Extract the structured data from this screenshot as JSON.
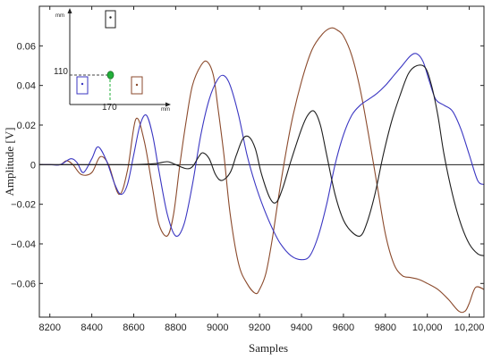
{
  "chart_data": {
    "type": "line",
    "xlabel": "Samples",
    "ylabel": "Amplitude [V]",
    "xlim": [
      8150,
      10270
    ],
    "ylim": [
      -0.077,
      0.08
    ],
    "x_ticks": [
      8200,
      8400,
      8600,
      8800,
      9000,
      9200,
      9400,
      9600,
      9800,
      10000,
      10200
    ],
    "x_tick_labels": [
      "8200",
      "8400",
      "8600",
      "8800",
      "9000",
      "9200",
      "9400",
      "9600",
      "9800",
      "10,000",
      "10,200"
    ],
    "y_ticks": [
      -0.06,
      -0.04,
      -0.02,
      0,
      0.02,
      0.04,
      0.06
    ],
    "y_tick_labels": [
      "−0.06",
      "−0.04",
      "−0.02",
      "0",
      "0.02",
      "0.04",
      "0.06"
    ],
    "grid": false,
    "series": [
      {
        "color": "#8b4a2c",
        "x": [
          8150,
          8200,
          8250,
          8280,
          8310,
          8350,
          8400,
          8440,
          8480,
          8530,
          8570,
          8610,
          8650,
          8690,
          8720,
          8760,
          8790,
          8820,
          8850,
          8880,
          8920,
          8950,
          8980,
          9000,
          9030,
          9060,
          9100,
          9140,
          9180,
          9200,
          9230,
          9260,
          9300,
          9350,
          9400,
          9450,
          9500,
          9540,
          9570,
          9600,
          9640,
          9680,
          9720,
          9760,
          9800,
          9840,
          9880,
          9920,
          9960,
          10000,
          10050,
          10100,
          10150,
          10180,
          10200,
          10230,
          10270
        ],
        "y": [
          0.0,
          0.0,
          0.0,
          0.002,
          0.0,
          -0.005,
          -0.004,
          0.004,
          0.0,
          -0.015,
          -0.003,
          0.023,
          0.012,
          -0.012,
          -0.03,
          -0.036,
          -0.025,
          0.0,
          0.022,
          0.04,
          0.05,
          0.052,
          0.045,
          0.03,
          0.005,
          -0.025,
          -0.05,
          -0.06,
          -0.065,
          -0.063,
          -0.055,
          -0.038,
          -0.01,
          0.02,
          0.042,
          0.058,
          0.066,
          0.069,
          0.068,
          0.065,
          0.055,
          0.038,
          0.015,
          -0.01,
          -0.035,
          -0.05,
          -0.056,
          -0.057,
          -0.058,
          -0.06,
          -0.063,
          -0.068,
          -0.074,
          -0.074,
          -0.07,
          -0.062,
          -0.063
        ]
      },
      {
        "color": "#3a36c2",
        "x": [
          8150,
          8200,
          8250,
          8300,
          8330,
          8360,
          8400,
          8430,
          8470,
          8510,
          8540,
          8570,
          8600,
          8630,
          8660,
          8690,
          8720,
          8760,
          8800,
          8840,
          8880,
          8920,
          8960,
          9000,
          9030,
          9060,
          9100,
          9140,
          9180,
          9220,
          9260,
          9300,
          9350,
          9400,
          9440,
          9480,
          9520,
          9560,
          9600,
          9640,
          9680,
          9720,
          9760,
          9800,
          9840,
          9880,
          9920,
          9950,
          9980,
          10010,
          10040,
          10080,
          10120,
          10160,
          10200,
          10240,
          10270
        ],
        "y": [
          0.0,
          0.0,
          0.0,
          0.003,
          0.001,
          -0.004,
          0.003,
          0.009,
          0.002,
          -0.01,
          -0.015,
          -0.01,
          0.005,
          0.02,
          0.025,
          0.015,
          -0.003,
          -0.025,
          -0.036,
          -0.03,
          -0.01,
          0.015,
          0.033,
          0.043,
          0.045,
          0.04,
          0.025,
          0.005,
          -0.01,
          -0.022,
          -0.032,
          -0.04,
          -0.046,
          -0.048,
          -0.046,
          -0.036,
          -0.02,
          0.0,
          0.015,
          0.025,
          0.03,
          0.033,
          0.036,
          0.04,
          0.045,
          0.05,
          0.055,
          0.056,
          0.052,
          0.042,
          0.033,
          0.03,
          0.027,
          0.018,
          0.005,
          -0.008,
          -0.01
        ]
      },
      {
        "color": "#1e1e1e",
        "x": [
          8150,
          8300,
          8400,
          8500,
          8600,
          8700,
          8760,
          8800,
          8850,
          8880,
          8910,
          8930,
          8960,
          8990,
          9020,
          9060,
          9090,
          9120,
          9150,
          9180,
          9210,
          9250,
          9280,
          9310,
          9350,
          9400,
          9430,
          9460,
          9490,
          9520,
          9560,
          9600,
          9640,
          9680,
          9710,
          9750,
          9790,
          9830,
          9870,
          9910,
          9950,
          9990,
          10020,
          10050,
          10080,
          10120,
          10160,
          10200,
          10240,
          10270
        ],
        "y": [
          0.0,
          0.0,
          0.0,
          0.0,
          0.0,
          0.0005,
          0.0015,
          0.0,
          -0.002,
          -0.001,
          0.004,
          0.006,
          0.003,
          -0.005,
          -0.008,
          -0.004,
          0.005,
          0.013,
          0.014,
          0.008,
          -0.005,
          -0.017,
          -0.019,
          -0.012,
          0.002,
          0.018,
          0.025,
          0.027,
          0.02,
          0.005,
          -0.015,
          -0.028,
          -0.034,
          -0.036,
          -0.03,
          -0.015,
          0.005,
          0.022,
          0.035,
          0.046,
          0.05,
          0.049,
          0.04,
          0.025,
          0.005,
          -0.015,
          -0.03,
          -0.04,
          -0.045,
          -0.046
        ]
      }
    ],
    "inset": {
      "x_unit": "mm",
      "y_unit": "mm",
      "x_mark_label": "170",
      "y_mark_label": "110",
      "boxes": [
        {
          "color": "#1e1e1e"
        },
        {
          "color": "#3a36c2"
        },
        {
          "color": "#8b4a2c"
        }
      ],
      "marker_color": "#22b03a"
    }
  }
}
